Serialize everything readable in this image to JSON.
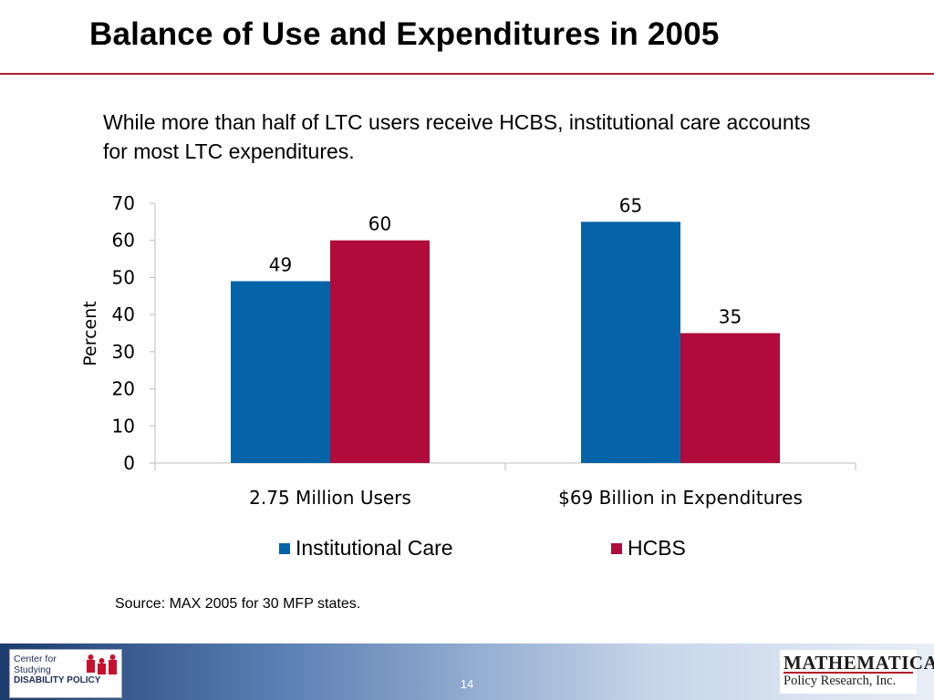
{
  "slide": {
    "title": "Balance of Use and Expenditures in 2005",
    "subtitle": "While more than half of LTC users receive HCBS, institutional care accounts for most LTC expenditures.",
    "source": "Source: MAX 2005 for 30 MFP states.",
    "page_number": "14"
  },
  "logos": {
    "left_line1": "Center for",
    "left_line2": "Studying",
    "left_line3": "DISABILITY POLICY",
    "right_line1": "MATHEMATICA",
    "right_line2": "Policy Research, Inc."
  },
  "colors": {
    "institutional": "#0563a8",
    "hcbs": "#b00b3a",
    "rule": "#a8243a"
  },
  "chart_data": {
    "type": "bar",
    "categories": [
      "2.75 Million Users",
      "$69 Billion in Expenditures"
    ],
    "series": [
      {
        "name": "Institutional Care",
        "values": [
          49,
          65
        ],
        "color": "#0563a8"
      },
      {
        "name": "HCBS",
        "values": [
          60,
          35
        ],
        "color": "#b00b3a"
      }
    ],
    "ylabel": "Percent",
    "xlabel": "",
    "ylim": [
      0,
      70
    ],
    "yticks": [
      0,
      10,
      20,
      30,
      40,
      50,
      60,
      70
    ],
    "grid": false,
    "legend": "bottom"
  }
}
